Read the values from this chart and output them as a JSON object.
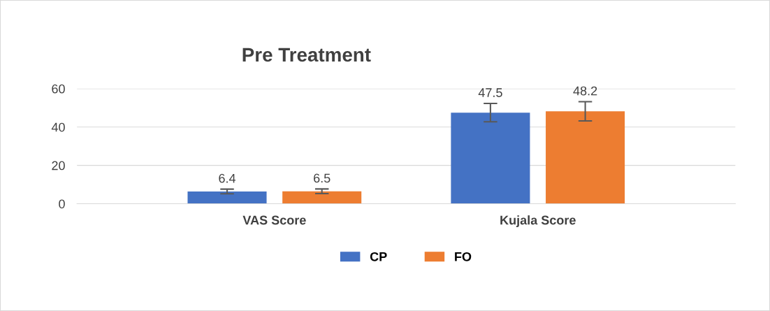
{
  "chart_data": {
    "type": "bar",
    "title": "Pre Treatment",
    "categories": [
      "VAS Score",
      "Kujala Score"
    ],
    "series": [
      {
        "name": "CP",
        "color": "#4472c4",
        "values": [
          6.4,
          47.5
        ],
        "errors": [
          1.2,
          4.8
        ]
      },
      {
        "name": "FO",
        "color": "#ed7d31",
        "values": [
          6.5,
          48.2
        ],
        "errors": [
          1.2,
          5
        ]
      }
    ],
    "ylim": [
      0,
      60
    ],
    "yticks": [
      0,
      20,
      40,
      60
    ],
    "grid": "y",
    "legend": "bottom",
    "data_labels": true
  }
}
